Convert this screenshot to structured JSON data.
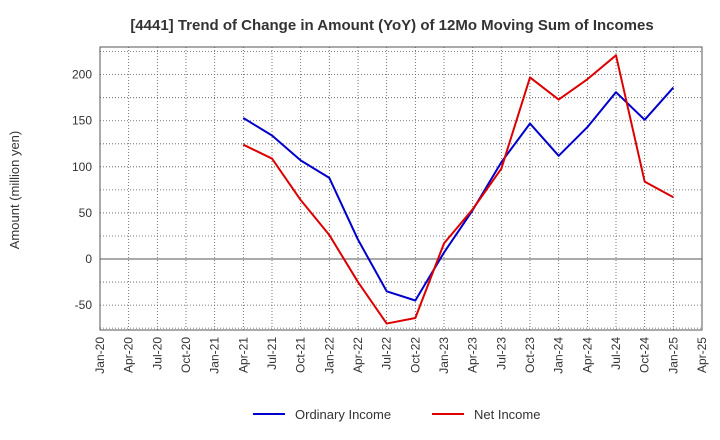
{
  "chart_data": {
    "type": "line",
    "title": "[4441]  Trend of Change in Amount (YoY) of 12Mo Moving Sum of Incomes",
    "xlabel": "",
    "ylabel": "Amount (million yen)",
    "ylim": [
      -77,
      230
    ],
    "y_ticks": [
      -50,
      0,
      50,
      100,
      150,
      200
    ],
    "y_tick_labels": [
      "-50",
      "0",
      "50",
      "100",
      "150",
      "200"
    ],
    "x_tick_labels": [
      "Jan-20",
      "Apr-20",
      "Jul-20",
      "Oct-20",
      "Jan-21",
      "Apr-21",
      "Jul-21",
      "Oct-21",
      "Jan-22",
      "Apr-22",
      "Jul-22",
      "Oct-22",
      "Jan-23",
      "Apr-23",
      "Jul-23",
      "Oct-23",
      "Jan-24",
      "Apr-24",
      "Jul-24",
      "Oct-24",
      "Jan-25",
      "Apr-25"
    ],
    "x": [
      "Apr-21",
      "Jul-21",
      "Oct-21",
      "Jan-22",
      "Apr-22",
      "Jul-22",
      "Oct-22",
      "Jan-23",
      "Apr-23",
      "Jul-23",
      "Oct-23",
      "Jan-24",
      "Apr-24",
      "Jul-24",
      "Oct-24",
      "Jan-25"
    ],
    "grid": true,
    "legend_position": "bottom",
    "series": [
      {
        "name": "Ordinary Income",
        "color": "#0000cc",
        "values": [
          153,
          134,
          107,
          88,
          21,
          -35,
          -45,
          7,
          53,
          105,
          147,
          112,
          143,
          181,
          151,
          186
        ]
      },
      {
        "name": "Net Income",
        "color": "#dd0000",
        "values": [
          124,
          109,
          64,
          26,
          -25,
          -70,
          -64,
          17,
          54,
          98,
          197,
          173,
          195,
          221,
          84,
          67
        ]
      }
    ]
  }
}
